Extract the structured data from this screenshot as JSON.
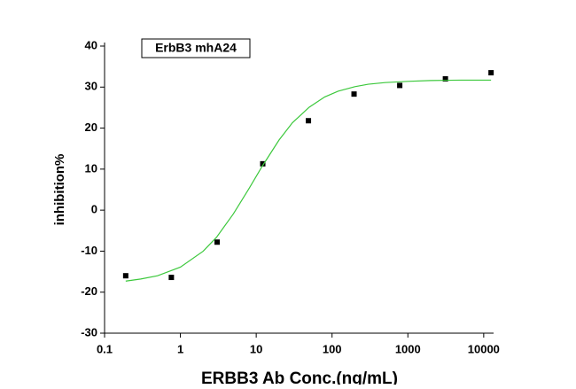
{
  "chart_data": {
    "type": "scatter",
    "annotation": "ErbB3 mhA24",
    "x_label": "ERBB3 Ab Conc.(ng/mL)",
    "y_label": "inhibition%",
    "x_scale": "log",
    "xlim": [
      0.1,
      13500
    ],
    "xticks": [
      0.1,
      1,
      10,
      100,
      1000,
      10000
    ],
    "ylim": [
      -30,
      40
    ],
    "yticks": [
      -30,
      -20,
      -10,
      0,
      10,
      20,
      30,
      40
    ],
    "grid": false,
    "series": [
      {
        "type": "scatter",
        "color": "#000000",
        "x": [
          0.19,
          0.76,
          3.05,
          12.2,
          48.8,
          195,
          781,
          3125,
          12500
        ],
        "values": [
          -16,
          -16.4,
          -7.8,
          11.3,
          21.8,
          28.3,
          30.4,
          32,
          33.5
        ]
      },
      {
        "type": "line",
        "color": "#3cc83c",
        "x": [
          0.19,
          0.3,
          0.5,
          1,
          2,
          3,
          5,
          8,
          12,
          20,
          30,
          50,
          80,
          120,
          200,
          300,
          500,
          1000,
          2000,
          5000,
          12500
        ],
        "values": [
          -17.3,
          -16.8,
          -16,
          -13.9,
          -10,
          -6.6,
          -0.9,
          5.2,
          10.7,
          17.1,
          21.3,
          25.1,
          27.6,
          29,
          30.1,
          30.7,
          31.1,
          31.4,
          31.6,
          31.7,
          31.7
        ]
      }
    ]
  }
}
